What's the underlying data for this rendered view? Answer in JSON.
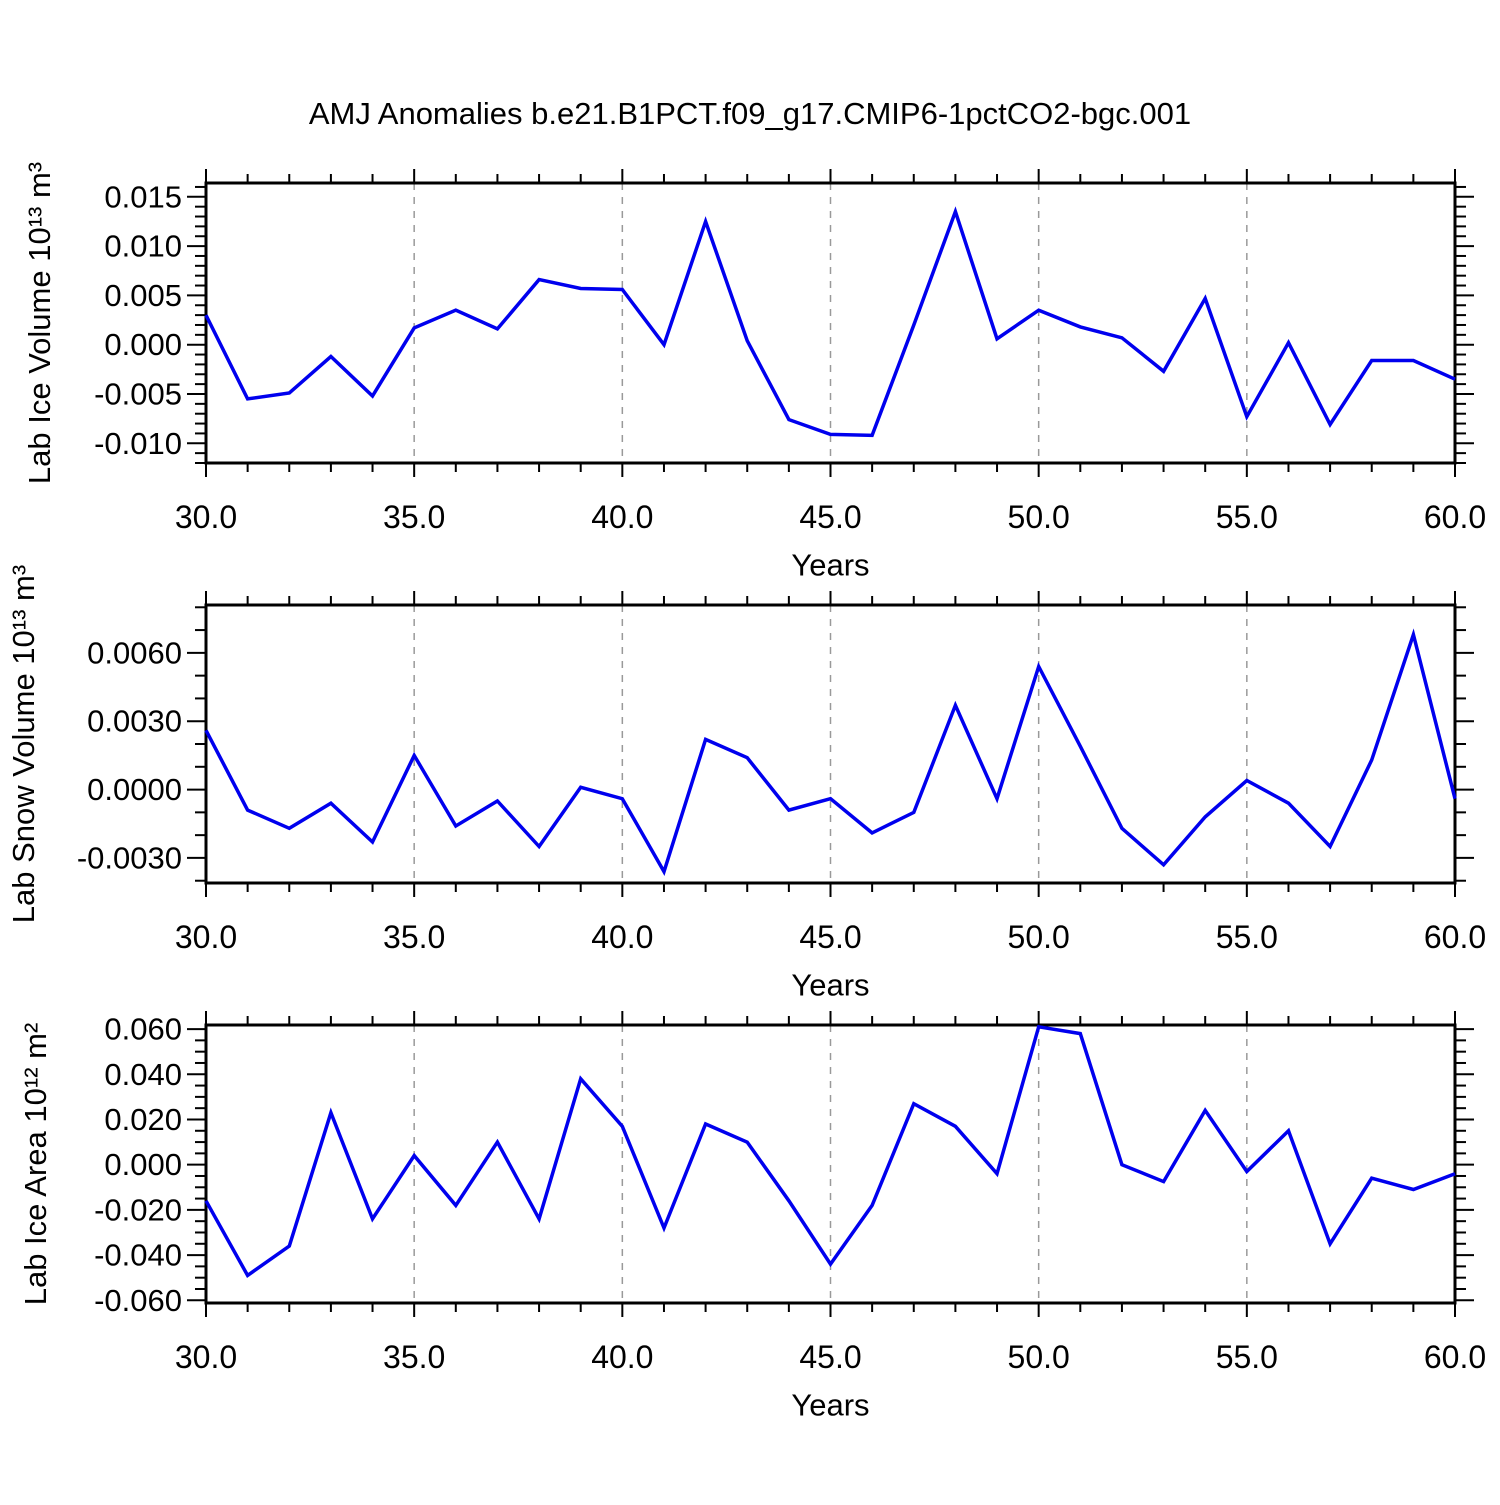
{
  "title": "AMJ Anomalies b.e21.B1PCT.f09_g17.CMIP6-1pctCO2-bgc.001",
  "colors": {
    "line": "#0000ee",
    "grid": "#999999",
    "axis": "#000000",
    "text": "#000000",
    "background": "#ffffff"
  },
  "chart_data": [
    {
      "type": "line",
      "ylabel": "Lab Ice Volume 10¹³ m³",
      "xlabel": "Years",
      "legend": null,
      "grid": "vertical-dashed",
      "x": [
        30,
        31,
        32,
        33,
        34,
        35,
        36,
        37,
        38,
        39,
        40,
        41,
        42,
        43,
        44,
        45,
        46,
        47,
        48,
        49,
        50,
        51,
        52,
        53,
        54,
        55,
        56,
        57,
        58,
        59,
        60
      ],
      "series": [
        {
          "name": "Lab Ice Volume anomaly",
          "values": [
            0.003,
            -0.0055,
            -0.0049,
            -0.0012,
            -0.0052,
            0.0017,
            0.0035,
            0.0016,
            0.0066,
            0.0057,
            0.0056,
            0.0,
            0.0125,
            0.0004,
            -0.0076,
            -0.0091,
            -0.0092,
            0.002,
            0.0135,
            0.0006,
            0.0035,
            0.0018,
            0.0007,
            -0.0027,
            0.0047,
            -0.0073,
            0.0002,
            -0.0081,
            -0.0016,
            -0.0016,
            -0.0035
          ]
        }
      ],
      "xlim": [
        30,
        60
      ],
      "ylim": [
        -0.012,
        0.0164
      ],
      "x_tick_values": [
        30,
        35,
        40,
        45,
        50,
        55,
        60
      ],
      "x_tick_labels": [
        "30.0",
        "35.0",
        "40.0",
        "45.0",
        "50.0",
        "55.0",
        "60.0"
      ],
      "x_minor_step": 1,
      "y_tick_values": [
        0.015,
        0.01,
        0.005,
        0.0,
        -0.005,
        -0.01
      ],
      "y_tick_labels": [
        "0.015",
        "0.010",
        "0.005",
        "0.000",
        "-0.005",
        "-0.010"
      ],
      "y_minor_step": 0.001,
      "grid_x": [
        35,
        40,
        45,
        50,
        55
      ]
    },
    {
      "type": "line",
      "ylabel": "Lab Snow Volume 10¹³ m³",
      "xlabel": "Years",
      "legend": null,
      "grid": "vertical-dashed",
      "x": [
        30,
        31,
        32,
        33,
        34,
        35,
        36,
        37,
        38,
        39,
        40,
        41,
        42,
        43,
        44,
        45,
        46,
        47,
        48,
        49,
        50,
        51,
        52,
        53,
        54,
        55,
        56,
        57,
        58,
        59,
        60
      ],
      "series": [
        {
          "name": "Lab Snow Volume anomaly",
          "values": [
            0.0026,
            -0.0009,
            -0.0017,
            -0.0006,
            -0.0023,
            0.0015,
            -0.0016,
            -0.0005,
            -0.0025,
            0.0001,
            -0.0004,
            -0.0036,
            0.0022,
            0.0014,
            -0.0009,
            -0.0004,
            -0.0019,
            -0.001,
            0.0037,
            -0.0004,
            0.0054,
            0.0019,
            -0.0017,
            -0.0033,
            -0.0012,
            0.0004,
            -0.0006,
            -0.0025,
            0.0013,
            0.0068,
            -0.0004
          ]
        }
      ],
      "xlim": [
        30,
        60
      ],
      "ylim": [
        -0.0041,
        0.0081
      ],
      "x_tick_values": [
        30,
        35,
        40,
        45,
        50,
        55,
        60
      ],
      "x_tick_labels": [
        "30.0",
        "35.0",
        "40.0",
        "45.0",
        "50.0",
        "55.0",
        "60.0"
      ],
      "x_minor_step": 1,
      "y_tick_values": [
        0.006,
        0.003,
        0.0,
        -0.003
      ],
      "y_tick_labels": [
        "0.0060",
        "0.0030",
        "0.0000",
        "-0.0030"
      ],
      "y_minor_step": 0.001,
      "grid_x": [
        35,
        40,
        45,
        50,
        55
      ]
    },
    {
      "type": "line",
      "ylabel": "Lab Ice Area 10¹² m²",
      "xlabel": "Years",
      "legend": null,
      "grid": "vertical-dashed",
      "x": [
        30,
        31,
        32,
        33,
        34,
        35,
        36,
        37,
        38,
        39,
        40,
        41,
        42,
        43,
        44,
        45,
        46,
        47,
        48,
        49,
        50,
        51,
        52,
        53,
        54,
        55,
        56,
        57,
        58,
        59,
        60
      ],
      "series": [
        {
          "name": "Lab Ice Area anomaly",
          "values": [
            -0.016,
            -0.049,
            -0.036,
            0.023,
            -0.024,
            0.004,
            -0.018,
            0.01,
            -0.024,
            0.038,
            0.017,
            -0.028,
            0.018,
            0.01,
            -0.016,
            -0.044,
            -0.018,
            0.027,
            0.017,
            -0.004,
            0.061,
            0.058,
            0.0,
            -0.0075,
            0.024,
            -0.003,
            0.015,
            -0.035,
            -0.006,
            -0.011,
            -0.004
          ]
        }
      ],
      "xlim": [
        30,
        60
      ],
      "ylim": [
        -0.0612,
        0.0618
      ],
      "x_tick_values": [
        30,
        35,
        40,
        45,
        50,
        55,
        60
      ],
      "x_tick_labels": [
        "30.0",
        "35.0",
        "40.0",
        "45.0",
        "50.0",
        "55.0",
        "60.0"
      ],
      "x_minor_step": 1,
      "y_tick_values": [
        0.06,
        0.04,
        0.02,
        0.0,
        -0.02,
        -0.04,
        -0.06
      ],
      "y_tick_labels": [
        "0.060",
        "0.040",
        "0.020",
        "0.000",
        "-0.020",
        "-0.040",
        "-0.060"
      ],
      "y_minor_step": 0.005,
      "grid_x": [
        35,
        40,
        45,
        50,
        55
      ]
    }
  ]
}
